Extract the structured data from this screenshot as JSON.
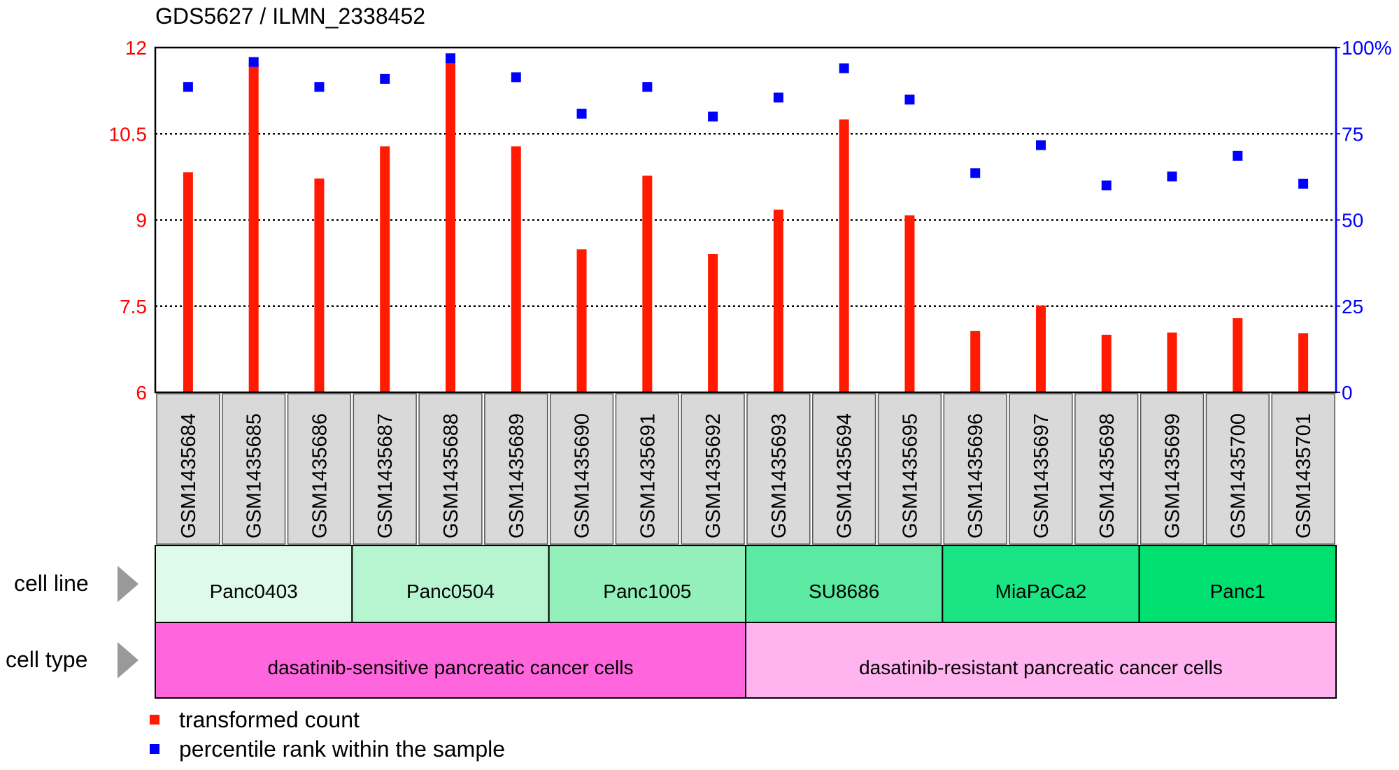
{
  "chart_data": {
    "type": "bar",
    "title": "GDS5627 / ILMN_2338452",
    "categories": [
      "GSM1435684",
      "GSM1435685",
      "GSM1435686",
      "GSM1435687",
      "GSM1435688",
      "GSM1435689",
      "GSM1435690",
      "GSM1435691",
      "GSM1435692",
      "GSM1435693",
      "GSM1435694",
      "GSM1435695",
      "GSM1435696",
      "GSM1435697",
      "GSM1435698",
      "GSM1435699",
      "GSM1435700",
      "GSM1435701"
    ],
    "series": [
      {
        "name": "transformed count",
        "type": "bar",
        "axis": "left",
        "color": "#ff1a00",
        "values": [
          9.83,
          11.73,
          9.72,
          10.28,
          11.81,
          10.28,
          8.49,
          9.77,
          8.41,
          9.18,
          10.75,
          9.08,
          7.07,
          7.51,
          7.0,
          7.04,
          7.29,
          7.03
        ]
      },
      {
        "name": "percentile rank within the sample",
        "type": "scatter",
        "axis": "right",
        "color": "#0000ff",
        "values": [
          88.6,
          95.8,
          88.6,
          90.9,
          96.9,
          91.4,
          80.8,
          88.6,
          80.0,
          85.5,
          94.0,
          84.9,
          63.6,
          71.7,
          60.0,
          62.6,
          68.6,
          60.5
        ]
      }
    ],
    "left_axis": {
      "ylim": [
        6,
        12
      ],
      "ticks": [
        "6",
        "7.5",
        "9",
        "10.5",
        "12"
      ],
      "color": "#ff0000"
    },
    "right_axis": {
      "ylim": [
        0,
        100
      ],
      "ticks": [
        "0",
        "25",
        "50",
        "75",
        "100%"
      ],
      "color": "#0000ff"
    },
    "grid": "horizontal dotted",
    "legend_placement": "bottom-left",
    "annotations": [
      {
        "label": "cell line",
        "groups": [
          {
            "name": "Panc0403",
            "count": 3,
            "color": "#defbe9"
          },
          {
            "name": "Panc0504",
            "count": 3,
            "color": "#b6f5d0"
          },
          {
            "name": "Panc1005",
            "count": 3,
            "color": "#93f0ba"
          },
          {
            "name": "SU8686",
            "count": 3,
            "color": "#5ce9a1"
          },
          {
            "name": "MiaPaCa2",
            "count": 3,
            "color": "#1ae483"
          },
          {
            "name": "Panc1",
            "count": 3,
            "color": "#00e070"
          }
        ]
      },
      {
        "label": "cell type",
        "groups": [
          {
            "name": "dasatinib-sensitive pancreatic cancer cells",
            "count": 9,
            "color": "#ff66dd"
          },
          {
            "name": "dasatinib-resistant pancreatic cancer cells",
            "count": 9,
            "color": "#ffb3ef"
          }
        ]
      }
    ]
  }
}
